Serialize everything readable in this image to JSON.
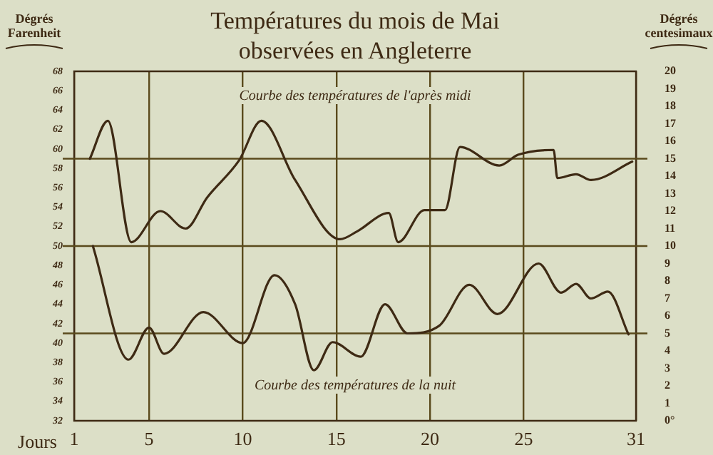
{
  "chart_data": {
    "type": "line",
    "title": "Températures du mois de Mai\nobservées en Angleterre",
    "xlabel": "Jours",
    "ylabel": "Dégrés Farenheit",
    "y2label": "Dégrés centesimaux",
    "xlim": [
      1,
      31
    ],
    "xticks": [
      1,
      5,
      10,
      15,
      20,
      25,
      31
    ],
    "ylim": [
      32,
      68
    ],
    "yticks": [
      32,
      34,
      36,
      38,
      40,
      42,
      44,
      46,
      48,
      50,
      52,
      54,
      56,
      58,
      60,
      62,
      64,
      66,
      68
    ],
    "y2lim": [
      0,
      20
    ],
    "y2ticks": [
      {
        "value": 0,
        "label": "0°"
      },
      1,
      2,
      3,
      4,
      5,
      6,
      7,
      8,
      9,
      10,
      11,
      12,
      13,
      14,
      15,
      16,
      17,
      18,
      19,
      20
    ],
    "grid": "x",
    "legend": false,
    "marker": "none",
    "line_style": "solid",
    "ref_lines": [
      {
        "axis": "y2",
        "value": 5,
        "color": "#5a4a1c"
      },
      {
        "axis": "y2",
        "value": 10,
        "color": "#5a4a1c"
      },
      {
        "axis": "y2",
        "value": 15,
        "color": "#5a4a1c"
      }
    ],
    "series": [
      {
        "name": "Courbe des températures de l'après midi",
        "color": "#3e2a14",
        "x": [
          1.84,
          2.8,
          4.05,
          5.6,
          6.95,
          8.1,
          9.8,
          11,
          12.8,
          15.2,
          16.1,
          17.8,
          18.3,
          19.7,
          20.8,
          21.6,
          23.7,
          24.7,
          26.6,
          26.8,
          27.8,
          28.6,
          30.8
        ],
        "values": [
          59,
          62.9,
          50.4,
          53.6,
          51.8,
          55,
          58.8,
          62.9,
          56.8,
          50.7,
          51.5,
          53.4,
          50.4,
          53.7,
          53.7,
          60.2,
          58.3,
          59.4,
          59.9,
          57,
          57.4,
          56.8,
          58.7
        ]
      },
      {
        "name": "Courbe des températures de la nuit",
        "color": "#3e2a14",
        "x": [
          2,
          3.9,
          5,
          5.8,
          7.9,
          10,
          11.7,
          12.8,
          13.8,
          14.8,
          16.3,
          17.6,
          18.8,
          20.5,
          22.1,
          23.6,
          25.8,
          27,
          27.8,
          28.6,
          29.5,
          30.6
        ],
        "values": [
          50,
          38.3,
          41.6,
          38.9,
          43.2,
          40,
          47,
          44,
          37.2,
          40.1,
          38.6,
          44,
          41,
          41.8,
          46,
          43,
          48.2,
          45.2,
          46.1,
          44.6,
          45.3,
          40.9
        ]
      }
    ]
  }
}
